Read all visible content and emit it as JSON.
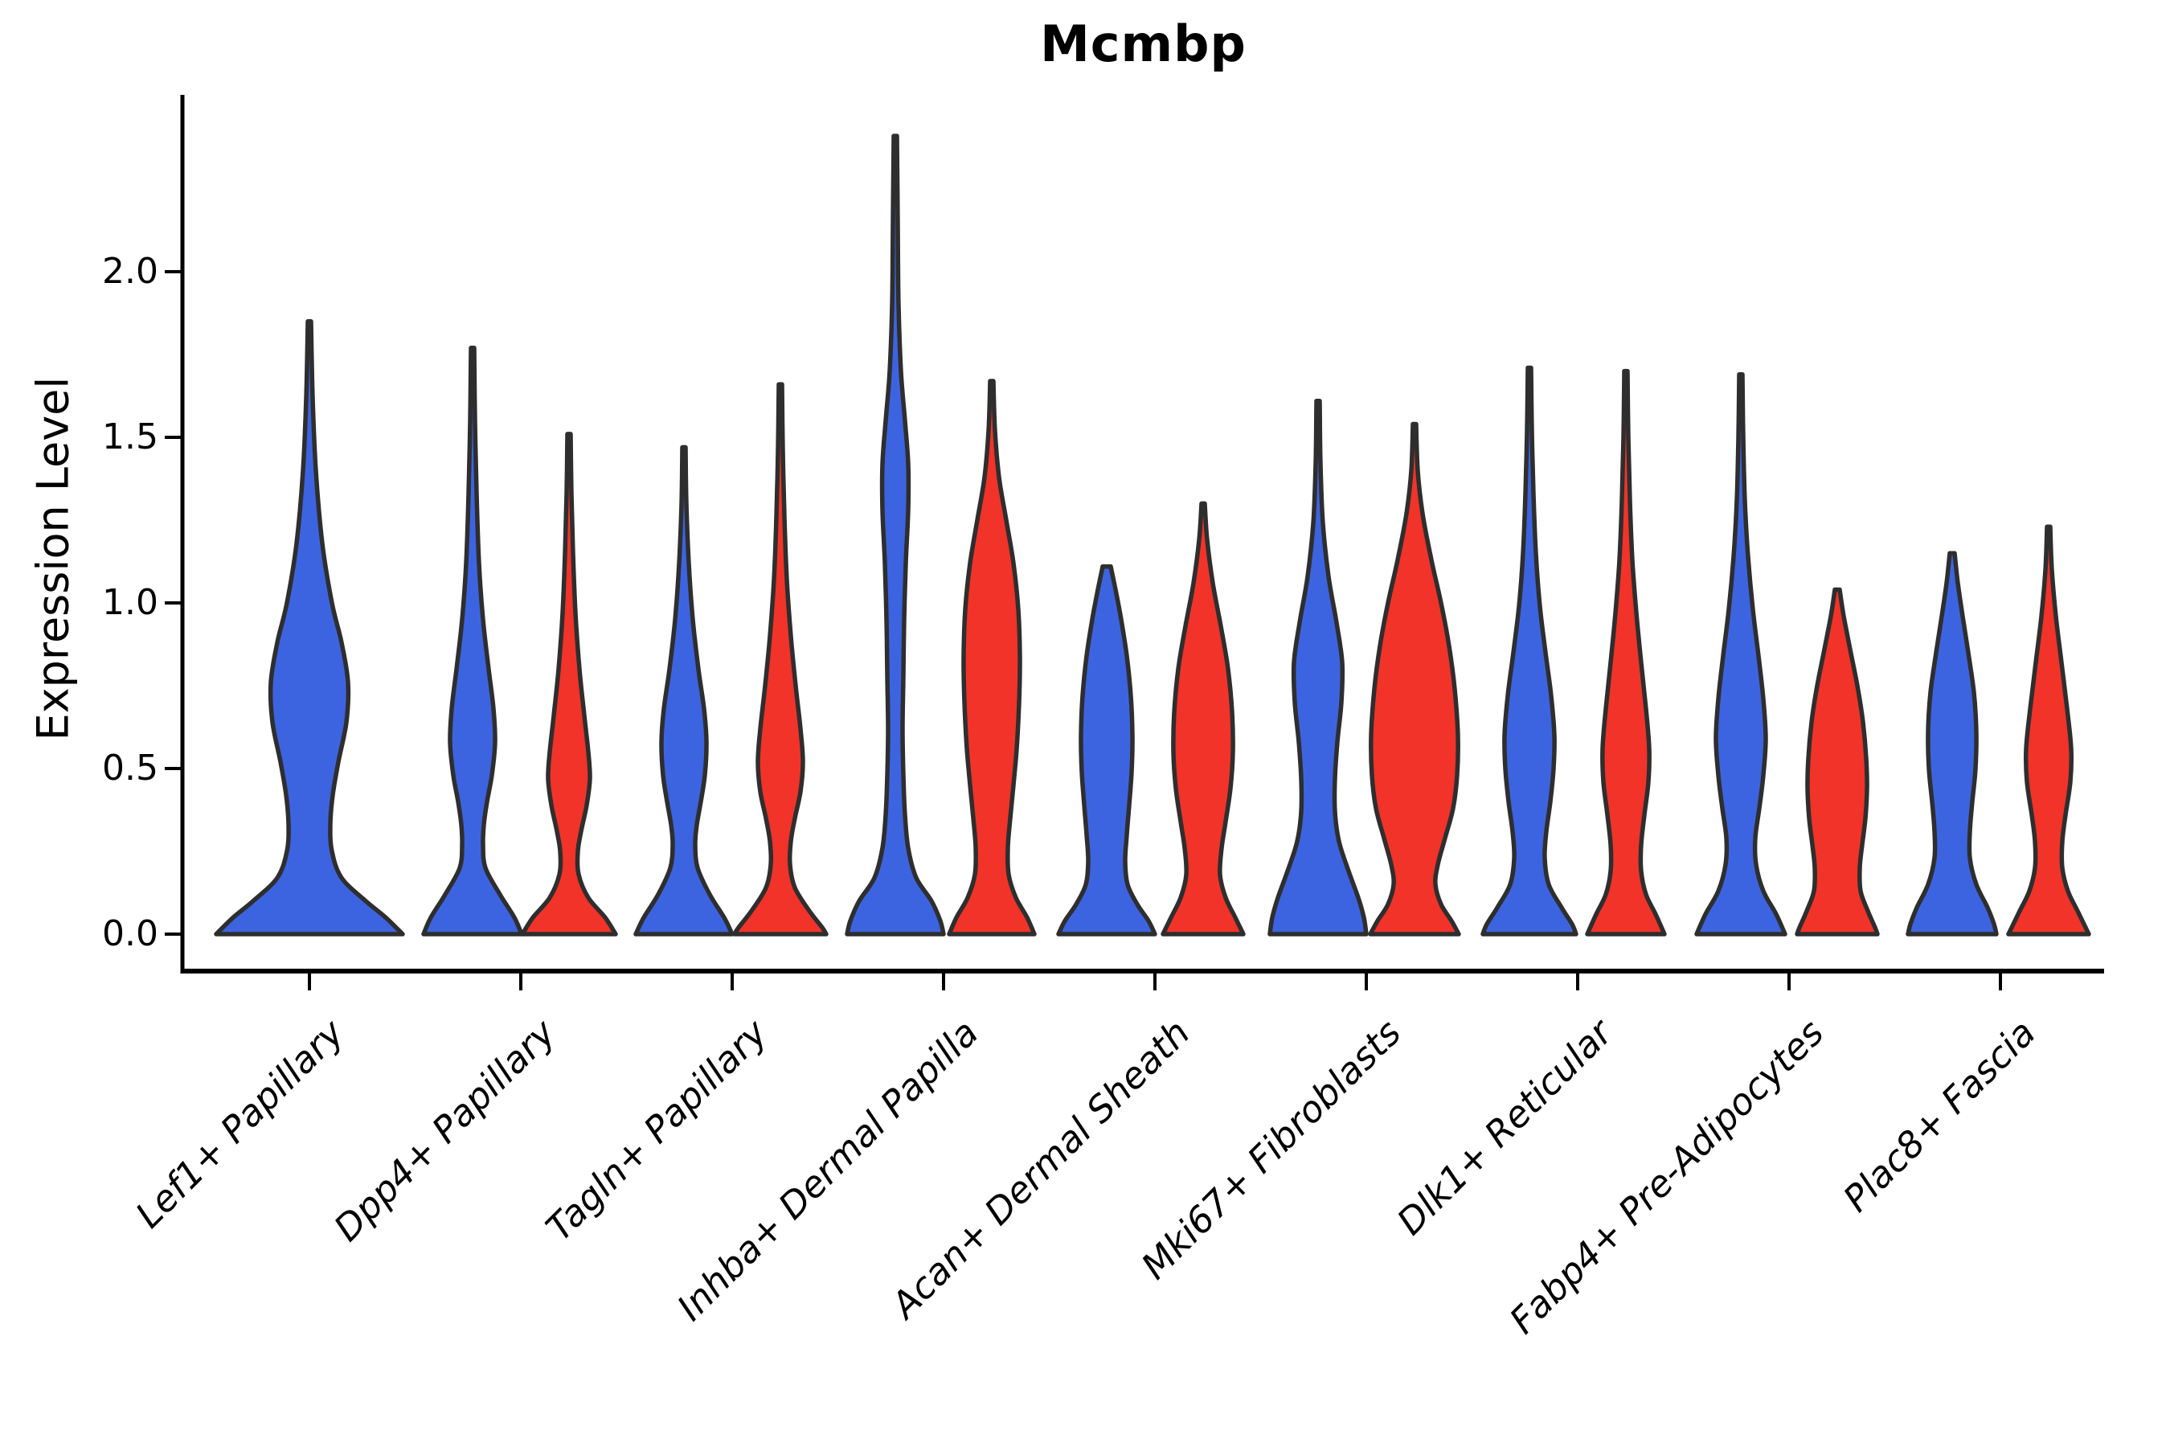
{
  "title": "Mcmbp",
  "axes": {
    "ylabel": "Expression Level",
    "ytick_labels": [
      "0.0",
      "0.5",
      "1.0",
      "1.5",
      "2.0"
    ],
    "ytick_values": [
      0.0,
      0.5,
      1.0,
      1.5,
      2.0
    ]
  },
  "chart_data": {
    "type": "violin",
    "title": "Mcmbp",
    "ylabel": "Expression Level",
    "ylim": [
      0,
      2.45
    ],
    "x_label_rotation_deg": 45,
    "grid": false,
    "legend": "none",
    "colors": {
      "blue": "#3D64E0",
      "red": "#F23329",
      "outline": "#2E2E2E",
      "axis": "#000000"
    },
    "categories": [
      "Lef1+ Papillary",
      "Dpp4+ Papillary",
      "Tagln+ Papillary",
      "Inhba+ Dermal Papilla",
      "Acan+ Dermal Sheath",
      "Mki67+ Fibroblasts",
      "Dlk1+ Reticular",
      "Fabp4+ Pre-Adipocytes",
      "Plac8+ Fascia"
    ],
    "violins": [
      {
        "category_index": 0,
        "color": "blue",
        "side": "center",
        "max_expression": 1.85,
        "profile": [
          [
            1.85,
            2
          ],
          [
            1.62,
            4
          ],
          [
            1.4,
            8
          ],
          [
            1.18,
            16
          ],
          [
            1.0,
            28
          ],
          [
            0.88,
            40
          ],
          [
            0.76,
            48
          ],
          [
            0.64,
            46
          ],
          [
            0.52,
            36
          ],
          [
            0.42,
            29
          ],
          [
            0.33,
            26
          ],
          [
            0.25,
            28
          ],
          [
            0.17,
            40
          ],
          [
            0.1,
            70
          ],
          [
            0.05,
            95
          ],
          [
            0.0,
            116
          ]
        ]
      },
      {
        "category_index": 1,
        "color": "blue",
        "side": "left",
        "max_expression": 1.77,
        "profile": [
          [
            1.77,
            2
          ],
          [
            1.55,
            3
          ],
          [
            1.33,
            5
          ],
          [
            1.12,
            8
          ],
          [
            0.95,
            13
          ],
          [
            0.8,
            20
          ],
          [
            0.68,
            26
          ],
          [
            0.58,
            28
          ],
          [
            0.48,
            24
          ],
          [
            0.4,
            18
          ],
          [
            0.33,
            14
          ],
          [
            0.27,
            13
          ],
          [
            0.2,
            16
          ],
          [
            0.12,
            34
          ],
          [
            0.05,
            52
          ],
          [
            0.0,
            61
          ]
        ]
      },
      {
        "category_index": 1,
        "color": "red",
        "side": "right",
        "max_expression": 1.51,
        "profile": [
          [
            1.51,
            2
          ],
          [
            1.33,
            3
          ],
          [
            1.15,
            5
          ],
          [
            0.97,
            8
          ],
          [
            0.8,
            13
          ],
          [
            0.66,
            19
          ],
          [
            0.55,
            24
          ],
          [
            0.47,
            26
          ],
          [
            0.39,
            22
          ],
          [
            0.31,
            15
          ],
          [
            0.25,
            11
          ],
          [
            0.18,
            12
          ],
          [
            0.11,
            24
          ],
          [
            0.05,
            45
          ],
          [
            0.0,
            58
          ]
        ]
      },
      {
        "category_index": 2,
        "color": "blue",
        "side": "left",
        "max_expression": 1.47,
        "profile": [
          [
            1.47,
            2
          ],
          [
            1.3,
            3
          ],
          [
            1.12,
            6
          ],
          [
            0.95,
            11
          ],
          [
            0.8,
            18
          ],
          [
            0.68,
            25
          ],
          [
            0.58,
            28
          ],
          [
            0.48,
            26
          ],
          [
            0.4,
            21
          ],
          [
            0.33,
            16
          ],
          [
            0.27,
            14
          ],
          [
            0.2,
            17
          ],
          [
            0.12,
            32
          ],
          [
            0.05,
            50
          ],
          [
            0.0,
            60
          ]
        ]
      },
      {
        "category_index": 2,
        "color": "red",
        "side": "right",
        "max_expression": 1.66,
        "profile": [
          [
            1.66,
            2
          ],
          [
            1.46,
            3
          ],
          [
            1.26,
            5
          ],
          [
            1.07,
            8
          ],
          [
            0.9,
            13
          ],
          [
            0.75,
            19
          ],
          [
            0.62,
            25
          ],
          [
            0.52,
            28
          ],
          [
            0.43,
            25
          ],
          [
            0.35,
            18
          ],
          [
            0.28,
            13
          ],
          [
            0.21,
            12
          ],
          [
            0.14,
            18
          ],
          [
            0.07,
            36
          ],
          [
            0.02,
            52
          ],
          [
            0.0,
            57
          ]
        ]
      },
      {
        "category_index": 3,
        "color": "blue",
        "side": "left",
        "max_expression": 2.41,
        "profile": [
          [
            2.41,
            2
          ],
          [
            2.15,
            3
          ],
          [
            1.9,
            4
          ],
          [
            1.7,
            7
          ],
          [
            1.55,
            12
          ],
          [
            1.42,
            16
          ],
          [
            1.28,
            16
          ],
          [
            1.12,
            13
          ],
          [
            0.95,
            11
          ],
          [
            0.78,
            10
          ],
          [
            0.62,
            9
          ],
          [
            0.48,
            10
          ],
          [
            0.36,
            12
          ],
          [
            0.26,
            16
          ],
          [
            0.17,
            26
          ],
          [
            0.1,
            45
          ],
          [
            0.04,
            56
          ],
          [
            0.0,
            60
          ]
        ]
      },
      {
        "category_index": 3,
        "color": "red",
        "side": "right",
        "max_expression": 1.67,
        "profile": [
          [
            1.67,
            2
          ],
          [
            1.52,
            4
          ],
          [
            1.38,
            9
          ],
          [
            1.25,
            18
          ],
          [
            1.12,
            27
          ],
          [
            0.98,
            33
          ],
          [
            0.84,
            35
          ],
          [
            0.7,
            34
          ],
          [
            0.56,
            31
          ],
          [
            0.45,
            27
          ],
          [
            0.35,
            23
          ],
          [
            0.26,
            20
          ],
          [
            0.18,
            21
          ],
          [
            0.11,
            30
          ],
          [
            0.05,
            44
          ],
          [
            0.0,
            53
          ]
        ]
      },
      {
        "category_index": 4,
        "color": "blue",
        "side": "left",
        "max_expression": 1.11,
        "profile": [
          [
            1.11,
            5
          ],
          [
            1.04,
            11
          ],
          [
            0.95,
            18
          ],
          [
            0.84,
            25
          ],
          [
            0.72,
            30
          ],
          [
            0.6,
            32
          ],
          [
            0.49,
            31
          ],
          [
            0.39,
            28
          ],
          [
            0.3,
            25
          ],
          [
            0.22,
            23
          ],
          [
            0.15,
            26
          ],
          [
            0.09,
            38
          ],
          [
            0.04,
            52
          ],
          [
            0.0,
            60
          ]
        ]
      },
      {
        "category_index": 4,
        "color": "red",
        "side": "right",
        "max_expression": 1.3,
        "profile": [
          [
            1.3,
            2
          ],
          [
            1.19,
            5
          ],
          [
            1.06,
            12
          ],
          [
            0.93,
            22
          ],
          [
            0.8,
            31
          ],
          [
            0.67,
            36
          ],
          [
            0.55,
            37
          ],
          [
            0.44,
            34
          ],
          [
            0.34,
            28
          ],
          [
            0.26,
            23
          ],
          [
            0.18,
            21
          ],
          [
            0.11,
            28
          ],
          [
            0.05,
            40
          ],
          [
            0.0,
            50
          ]
        ]
      },
      {
        "category_index": 5,
        "color": "blue",
        "side": "left",
        "max_expression": 1.61,
        "profile": [
          [
            1.61,
            2
          ],
          [
            1.42,
            3
          ],
          [
            1.24,
            6
          ],
          [
            1.08,
            13
          ],
          [
            0.94,
            23
          ],
          [
            0.82,
            30
          ],
          [
            0.7,
            29
          ],
          [
            0.58,
            24
          ],
          [
            0.47,
            21
          ],
          [
            0.37,
            21
          ],
          [
            0.28,
            26
          ],
          [
            0.19,
            38
          ],
          [
            0.11,
            50
          ],
          [
            0.05,
            57
          ],
          [
            0.0,
            60
          ]
        ]
      },
      {
        "category_index": 5,
        "color": "red",
        "side": "right",
        "max_expression": 1.54,
        "profile": [
          [
            1.54,
            2
          ],
          [
            1.4,
            4
          ],
          [
            1.27,
            10
          ],
          [
            1.13,
            21
          ],
          [
            1.0,
            33
          ],
          [
            0.87,
            43
          ],
          [
            0.74,
            50
          ],
          [
            0.6,
            54
          ],
          [
            0.48,
            53
          ],
          [
            0.38,
            48
          ],
          [
            0.29,
            38
          ],
          [
            0.21,
            29
          ],
          [
            0.15,
            26
          ],
          [
            0.09,
            33
          ],
          [
            0.04,
            46
          ],
          [
            0.0,
            55
          ]
        ]
      },
      {
        "category_index": 6,
        "color": "blue",
        "side": "left",
        "max_expression": 1.71,
        "profile": [
          [
            1.71,
            2
          ],
          [
            1.52,
            3
          ],
          [
            1.33,
            5
          ],
          [
            1.15,
            8
          ],
          [
            0.99,
            13
          ],
          [
            0.85,
            20
          ],
          [
            0.72,
            27
          ],
          [
            0.6,
            31
          ],
          [
            0.5,
            30
          ],
          [
            0.4,
            26
          ],
          [
            0.31,
            21
          ],
          [
            0.23,
            19
          ],
          [
            0.15,
            24
          ],
          [
            0.08,
            40
          ],
          [
            0.03,
            53
          ],
          [
            0.0,
            58
          ]
        ]
      },
      {
        "category_index": 6,
        "color": "red",
        "side": "right",
        "max_expression": 1.7,
        "profile": [
          [
            1.7,
            2
          ],
          [
            1.5,
            3
          ],
          [
            1.31,
            5
          ],
          [
            1.13,
            8
          ],
          [
            0.97,
            13
          ],
          [
            0.82,
            19
          ],
          [
            0.68,
            25
          ],
          [
            0.56,
            29
          ],
          [
            0.46,
            28
          ],
          [
            0.36,
            23
          ],
          [
            0.27,
            19
          ],
          [
            0.19,
            19
          ],
          [
            0.12,
            25
          ],
          [
            0.06,
            37
          ],
          [
            0.0,
            48
          ]
        ]
      },
      {
        "category_index": 7,
        "color": "blue",
        "side": "left",
        "max_expression": 1.69,
        "profile": [
          [
            1.69,
            2
          ],
          [
            1.5,
            3
          ],
          [
            1.31,
            5
          ],
          [
            1.14,
            9
          ],
          [
            0.98,
            15
          ],
          [
            0.84,
            22
          ],
          [
            0.71,
            28
          ],
          [
            0.59,
            31
          ],
          [
            0.48,
            28
          ],
          [
            0.38,
            23
          ],
          [
            0.29,
            18
          ],
          [
            0.21,
            19
          ],
          [
            0.13,
            28
          ],
          [
            0.06,
            44
          ],
          [
            0.0,
            55
          ]
        ]
      },
      {
        "category_index": 7,
        "color": "red",
        "side": "right",
        "max_expression": 1.04,
        "profile": [
          [
            1.04,
            3
          ],
          [
            0.96,
            8
          ],
          [
            0.86,
            16
          ],
          [
            0.75,
            25
          ],
          [
            0.64,
            32
          ],
          [
            0.53,
            36
          ],
          [
            0.44,
            37
          ],
          [
            0.35,
            35
          ],
          [
            0.27,
            31
          ],
          [
            0.2,
            28
          ],
          [
            0.13,
            29
          ],
          [
            0.07,
            38
          ],
          [
            0.02,
            47
          ],
          [
            0.0,
            50
          ]
        ]
      },
      {
        "category_index": 8,
        "color": "blue",
        "side": "left",
        "max_expression": 1.15,
        "profile": [
          [
            1.15,
            3
          ],
          [
            1.06,
            7
          ],
          [
            0.96,
            13
          ],
          [
            0.85,
            20
          ],
          [
            0.73,
            27
          ],
          [
            0.61,
            30
          ],
          [
            0.5,
            29
          ],
          [
            0.4,
            25
          ],
          [
            0.31,
            22
          ],
          [
            0.23,
            22
          ],
          [
            0.15,
            30
          ],
          [
            0.08,
            44
          ],
          [
            0.03,
            52
          ],
          [
            0.0,
            55
          ]
        ]
      },
      {
        "category_index": 8,
        "color": "red",
        "side": "right",
        "max_expression": 1.23,
        "profile": [
          [
            1.23,
            2
          ],
          [
            1.1,
            4
          ],
          [
            0.96,
            9
          ],
          [
            0.82,
            16
          ],
          [
            0.68,
            23
          ],
          [
            0.56,
            28
          ],
          [
            0.46,
            27
          ],
          [
            0.36,
            21
          ],
          [
            0.28,
            17
          ],
          [
            0.2,
            17
          ],
          [
            0.13,
            24
          ],
          [
            0.07,
            36
          ],
          [
            0.02,
            46
          ],
          [
            0.0,
            50
          ]
        ]
      }
    ]
  }
}
